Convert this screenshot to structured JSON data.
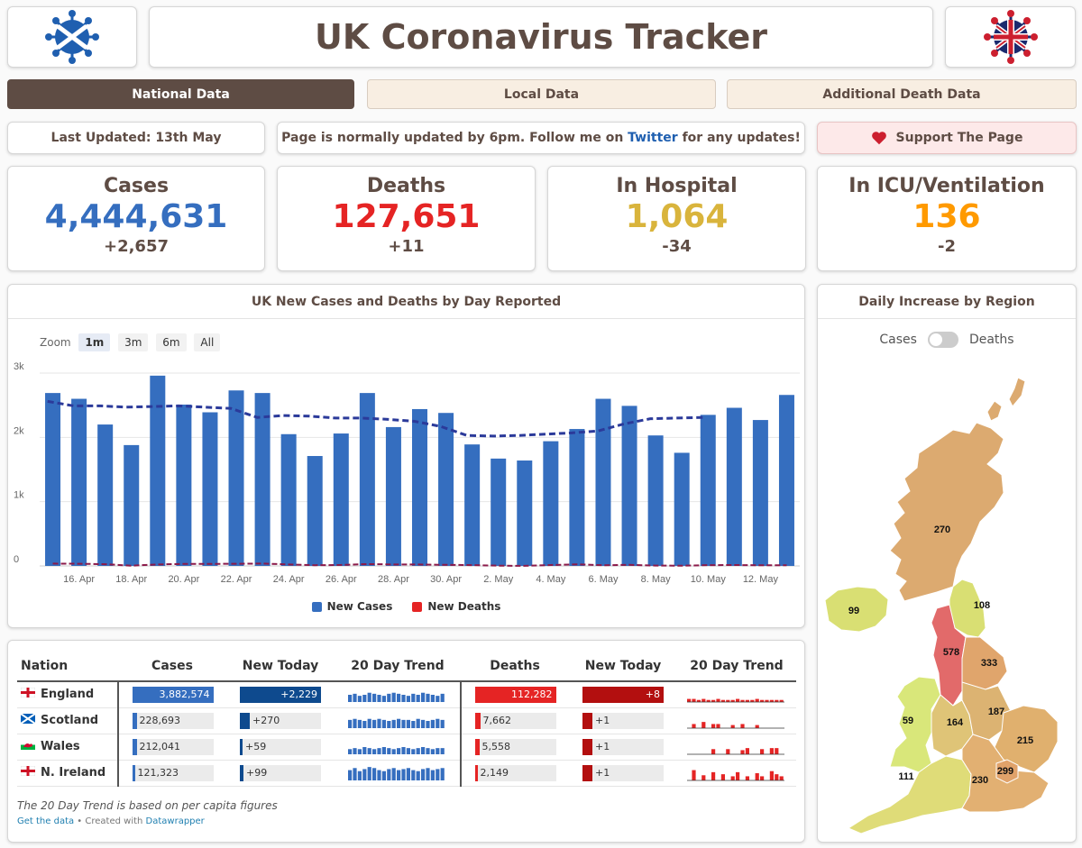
{
  "header": {
    "title": "UK Coronavirus Tracker"
  },
  "tabs": [
    {
      "label": "National Data"
    },
    {
      "label": "Local Data"
    },
    {
      "label": "Additional Death Data"
    }
  ],
  "info": {
    "last_updated": "Last Updated: 13th May",
    "update_note_prefix": "Page is normally updated by 6pm. Follow me on ",
    "update_note_link": "Twitter",
    "update_note_suffix": " for any updates!",
    "support_label": "Support The Page"
  },
  "stats": [
    {
      "label": "Cases",
      "value": "4,444,631",
      "change": "+2,657",
      "color": "#356ebf"
    },
    {
      "label": "Deaths",
      "value": "127,651",
      "change": "+11",
      "color": "#e52424"
    },
    {
      "label": "In Hospital",
      "value": "1,064",
      "change": "-34",
      "color": "#d9b43c"
    },
    {
      "label": "In ICU/Ventilation",
      "value": "136",
      "change": "-2",
      "color": "#ff9a00"
    }
  ],
  "main_chart": {
    "title": "UK New Cases and Deaths by Day Reported",
    "zoom_label": "Zoom",
    "zoom_options": [
      "1m",
      "3m",
      "6m",
      "All"
    ],
    "legend": [
      "New Cases",
      "New Deaths"
    ]
  },
  "chart_data": {
    "type": "bar",
    "title": "UK New Cases and Deaths by Day Reported",
    "ylim": [
      0,
      3000
    ],
    "yticks": [
      "0",
      "1k",
      "2k",
      "3k"
    ],
    "xticks": [
      "16. Apr",
      "18. Apr",
      "20. Apr",
      "22. Apr",
      "24. Apr",
      "26. Apr",
      "28. Apr",
      "30. Apr",
      "2. May",
      "4. May",
      "6. May",
      "8. May",
      "10. May",
      "12. May"
    ],
    "colors": {
      "cases": "#356ebf",
      "deaths": "#e52424",
      "avg": "#2b3a9a",
      "deaths_avg": "#8b1a4a"
    },
    "series": [
      {
        "name": "New Cases",
        "values": [
          2690,
          2600,
          2200,
          1880,
          2960,
          2510,
          2390,
          2730,
          2690,
          2050,
          1710,
          2060,
          2690,
          2160,
          2440,
          2380,
          1890,
          1670,
          1640,
          1940,
          2130,
          2600,
          2490,
          2030,
          1760,
          2350,
          2460,
          2270,
          2660
        ]
      },
      {
        "name": "New Deaths",
        "values": [
          36,
          34,
          27,
          4,
          23,
          32,
          32,
          33,
          37,
          23,
          11,
          15,
          29,
          23,
          22,
          17,
          13,
          4,
          1,
          14,
          25,
          11,
          17,
          5,
          4,
          12,
          14,
          10,
          11
        ]
      },
      {
        "name": "",
        "values": [
          2560,
          2490,
          2490,
          2470,
          2480,
          2490,
          2470,
          2450,
          2310,
          2340,
          2330,
          2300,
          2300,
          2280,
          2250,
          2170,
          2030,
          2020,
          2030,
          2050,
          2070,
          2100,
          2210,
          2290,
          2300,
          2310
        ]
      }
    ]
  },
  "region_panel": {
    "title": "Daily Increase by Region",
    "toggle_left": "Cases",
    "toggle_right": "Deaths",
    "regions": [
      {
        "name": "Scotland",
        "value": "270",
        "color": "#dcaa70"
      },
      {
        "name": "Northern Ireland",
        "value": "99",
        "color": "#d9df73"
      },
      {
        "name": "North East",
        "value": "108",
        "color": "#d9df73"
      },
      {
        "name": "North West",
        "value": "578",
        "color": "#e26a6a"
      },
      {
        "name": "Yorkshire",
        "value": "333",
        "color": "#e0a56c"
      },
      {
        "name": "Wales",
        "value": "59",
        "color": "#d9e77a"
      },
      {
        "name": "West Midlands",
        "value": "164",
        "color": "#dfc477"
      },
      {
        "name": "East Midlands",
        "value": "187",
        "color": "#dcb372"
      },
      {
        "name": "East of England",
        "value": "215",
        "color": "#e0b06e"
      },
      {
        "name": "South West",
        "value": "111",
        "color": "#dfdc78"
      },
      {
        "name": "South East",
        "value": "230",
        "color": "#e2b072"
      },
      {
        "name": "London",
        "value": "299",
        "color": "#e0a26a"
      }
    ]
  },
  "nation_table": {
    "headers": [
      "Nation",
      "Cases",
      "New Today",
      "20 Day Trend",
      "Deaths",
      "New Today",
      "20 Day Trend"
    ],
    "rows": [
      {
        "nation": "England",
        "cases": "3,882,574",
        "cases_frac": 1.0,
        "new_cases": "+2,229",
        "new_cases_frac": 1.0,
        "deaths": "112,282",
        "deaths_frac": 1.0,
        "new_deaths": "+8",
        "new_deaths_frac": 1.0,
        "flag": "england-flag-icon"
      },
      {
        "nation": "Scotland",
        "cases": "228,693",
        "cases_frac": 0.06,
        "new_cases": "+270",
        "new_cases_frac": 0.12,
        "deaths": "7,662",
        "deaths_frac": 0.07,
        "new_deaths": "+1",
        "new_deaths_frac": 0.12,
        "flag": "scotland-flag-icon"
      },
      {
        "nation": "Wales",
        "cases": "212,041",
        "cases_frac": 0.055,
        "new_cases": "+59",
        "new_cases_frac": 0.03,
        "deaths": "5,558",
        "deaths_frac": 0.05,
        "new_deaths": "+1",
        "new_deaths_frac": 0.12,
        "flag": "wales-flag-icon"
      },
      {
        "nation": "N. Ireland",
        "cases": "121,323",
        "cases_frac": 0.03,
        "new_cases": "+99",
        "new_cases_frac": 0.04,
        "deaths": "2,149",
        "deaths_frac": 0.02,
        "new_deaths": "+1",
        "new_deaths_frac": 0.12,
        "flag": "northern-ireland-flag-icon"
      }
    ],
    "footnote": "The 20 Day Trend is based on per capita figures",
    "get_data": "Get the data",
    "created_with": " • Created with ",
    "datawrapper": "Datawrapper"
  }
}
